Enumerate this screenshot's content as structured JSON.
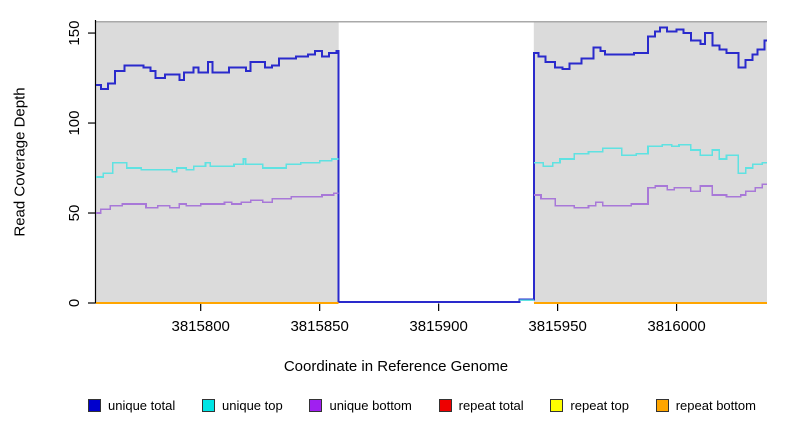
{
  "chart_data": {
    "type": "line",
    "step": true,
    "title": "",
    "xlabel": "Coordinate in Reference Genome",
    "ylabel": "Read Coverage Depth",
    "xlim": [
      3815756,
      3816038
    ],
    "ylim": [
      0,
      156.7
    ],
    "xticks": [
      3815800,
      3815850,
      3815900,
      3815950,
      3816000
    ],
    "yticks": [
      0,
      50,
      100,
      150
    ],
    "grid": false,
    "legend_position": "bottom",
    "panel_bg": "#DBDBDB",
    "panel_top_border": "#A9A9A9",
    "axis_color": "#000000",
    "no_data_region": {
      "start": 3815858,
      "end": 3815940,
      "color": "#FFFFFF"
    },
    "series": [
      {
        "name": "unique total",
        "color": "#2A2ACC",
        "legend_color": "#0000CD",
        "width": 2,
        "segments": [
          {
            "points": [
              [
                3815756,
                121
              ],
              [
                3815758,
                119
              ],
              [
                3815761,
                122
              ],
              [
                3815764,
                129
              ],
              [
                3815768,
                132
              ],
              [
                3815776,
                131
              ],
              [
                3815779,
                129
              ],
              [
                3815781,
                125
              ],
              [
                3815785,
                127
              ],
              [
                3815791,
                124
              ],
              [
                3815793,
                128
              ],
              [
                3815797,
                131
              ],
              [
                3815799,
                128
              ],
              [
                3815803,
                134
              ],
              [
                3815805,
                128
              ],
              [
                3815812,
                131
              ],
              [
                3815819,
                129
              ],
              [
                3815821,
                134
              ],
              [
                3815827,
                131
              ],
              [
                3815830,
                132
              ],
              [
                3815833,
                136
              ],
              [
                3815840,
                137
              ],
              [
                3815845,
                138
              ],
              [
                3815848,
                140
              ],
              [
                3815851,
                137
              ],
              [
                3815854,
                139
              ],
              [
                3815857,
                140
              ],
              [
                3815858,
                0.5
              ],
              [
                3815934,
                2
              ],
              [
                3815940,
                139
              ],
              [
                3815942,
                137
              ],
              [
                3815945,
                134
              ],
              [
                3815949,
                131
              ],
              [
                3815952,
                130
              ],
              [
                3815955,
                133
              ],
              [
                3815960,
                136
              ],
              [
                3815965,
                142
              ],
              [
                3815968,
                140
              ],
              [
                3815970,
                138
              ],
              [
                3815977,
                138
              ],
              [
                3815982,
                139
              ],
              [
                3815988,
                148
              ],
              [
                3815991,
                151
              ],
              [
                3815993,
                153
              ],
              [
                3815996,
                151
              ],
              [
                3816000,
                152
              ],
              [
                3816003,
                150
              ],
              [
                3816006,
                146
              ],
              [
                3816010,
                144
              ],
              [
                3816012,
                150
              ],
              [
                3816015,
                143
              ],
              [
                3816018,
                141
              ],
              [
                3816021,
                139
              ],
              [
                3816026,
                131
              ],
              [
                3816029,
                135
              ],
              [
                3816032,
                138
              ],
              [
                3816034,
                141
              ],
              [
                3816037,
                146
              ]
            ],
            "end_x": 3816038
          }
        ]
      },
      {
        "name": "unique top",
        "color": "#5FE2E2",
        "legend_color": "#00E5E5",
        "width": 1.6,
        "segments": [
          {
            "points": [
              [
                3815756,
                70
              ],
              [
                3815759,
                72
              ],
              [
                3815763,
                78
              ],
              [
                3815769,
                75
              ],
              [
                3815775,
                74
              ],
              [
                3815788,
                73
              ],
              [
                3815790,
                75
              ],
              [
                3815794,
                74
              ],
              [
                3815797,
                76
              ],
              [
                3815802,
                78
              ],
              [
                3815804,
                76
              ],
              [
                3815814,
                77
              ],
              [
                3815818,
                80
              ],
              [
                3815819,
                77
              ],
              [
                3815826,
                75
              ],
              [
                3815836,
                77
              ],
              [
                3815842,
                78
              ],
              [
                3815850,
                79
              ],
              [
                3815855,
                80
              ]
            ],
            "end_x": 3815858
          },
          {
            "points": [
              [
                3815934,
                1.5
              ]
            ],
            "end_x": 3815940
          },
          {
            "points": [
              [
                3815940,
                78
              ],
              [
                3815944,
                76
              ],
              [
                3815948,
                78
              ],
              [
                3815951,
                80
              ],
              [
                3815957,
                83
              ],
              [
                3815963,
                84
              ],
              [
                3815969,
                86
              ],
              [
                3815977,
                82
              ],
              [
                3815983,
                83
              ],
              [
                3815988,
                87
              ],
              [
                3815994,
                88
              ],
              [
                3815998,
                87
              ],
              [
                3816001,
                88
              ],
              [
                3816006,
                85
              ],
              [
                3816010,
                82
              ],
              [
                3816015,
                85
              ],
              [
                3816018,
                80
              ],
              [
                3816021,
                82
              ],
              [
                3816026,
                72
              ],
              [
                3816029,
                75
              ],
              [
                3816032,
                77
              ],
              [
                3816036,
                78
              ]
            ],
            "end_x": 3816038
          }
        ]
      },
      {
        "name": "unique bottom",
        "color": "#A878D8",
        "legend_color": "#A020F0",
        "width": 1.6,
        "segments": [
          {
            "points": [
              [
                3815756,
                50
              ],
              [
                3815758,
                52
              ],
              [
                3815762,
                54
              ],
              [
                3815767,
                55
              ],
              [
                3815777,
                53
              ],
              [
                3815782,
                54
              ],
              [
                3815787,
                53
              ],
              [
                3815791,
                55
              ],
              [
                3815794,
                54
              ],
              [
                3815800,
                55
              ],
              [
                3815810,
                56
              ],
              [
                3815813,
                55
              ],
              [
                3815817,
                56
              ],
              [
                3815821,
                57
              ],
              [
                3815826,
                56
              ],
              [
                3815830,
                58
              ],
              [
                3815838,
                59
              ],
              [
                3815851,
                60
              ],
              [
                3815856,
                61
              ]
            ],
            "end_x": 3815858
          },
          {
            "points": [
              [
                3815940,
                60
              ],
              [
                3815943,
                58
              ],
              [
                3815949,
                54
              ],
              [
                3815957,
                53
              ],
              [
                3815963,
                54
              ],
              [
                3815966,
                56
              ],
              [
                3815969,
                54
              ],
              [
                3815981,
                55
              ],
              [
                3815988,
                64
              ],
              [
                3815991,
                65
              ],
              [
                3815996,
                63
              ],
              [
                3815999,
                64
              ],
              [
                3816006,
                62
              ],
              [
                3816010,
                65
              ],
              [
                3816015,
                60
              ],
              [
                3816021,
                59
              ],
              [
                3816027,
                60
              ],
              [
                3816029,
                62
              ],
              [
                3816033,
                64
              ],
              [
                3816036,
                66
              ]
            ],
            "end_x": 3816038
          }
        ]
      },
      {
        "name": "repeat total",
        "color": "#E60000",
        "legend_color": "#EE0000",
        "width": 2,
        "segments": [
          {
            "points": [
              [
                3815756,
                0
              ]
            ],
            "end_x": 3815858
          },
          {
            "points": [
              [
                3815940,
                0
              ]
            ],
            "end_x": 3816038
          }
        ]
      },
      {
        "name": "repeat top",
        "color": "#FFFF00",
        "legend_color": "#FFFF00",
        "width": 2,
        "segments": [
          {
            "points": [
              [
                3815756,
                0
              ]
            ],
            "end_x": 3815858
          },
          {
            "points": [
              [
                3815940,
                0
              ]
            ],
            "end_x": 3816038
          }
        ]
      },
      {
        "name": "repeat bottom",
        "color": "#FFA500",
        "legend_color": "#FFA500",
        "width": 2.4,
        "segments": [
          {
            "points": [
              [
                3815756,
                0
              ]
            ],
            "end_x": 3815858
          },
          {
            "points": [
              [
                3815940,
                0
              ]
            ],
            "end_x": 3816038
          }
        ]
      }
    ]
  }
}
